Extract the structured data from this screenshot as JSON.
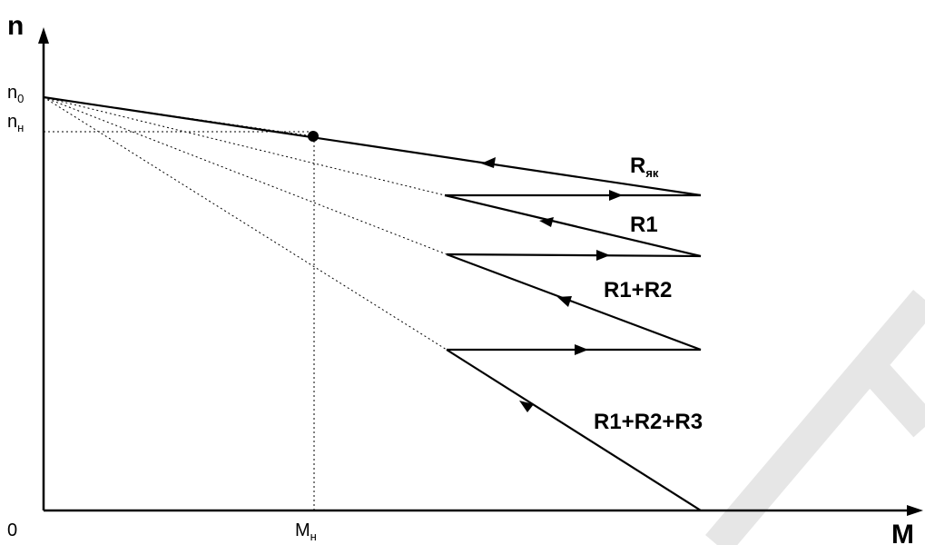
{
  "axes": {
    "y_label": "n",
    "x_label": "M",
    "origin_label": "0"
  },
  "ticks": {
    "n0_main": "n",
    "n0_sub": "0",
    "nn_main": "n",
    "nn_sub": "н",
    "mn_main": "M",
    "mn_sub": "н"
  },
  "characteristics": [
    {
      "name_main": "R",
      "name_sub": "як"
    },
    {
      "name_main": "R1",
      "name_sub": ""
    },
    {
      "name_main": "R1+R2",
      "name_sub": ""
    },
    {
      "name_main": "R1+R2+R3",
      "name_sub": ""
    }
  ]
}
